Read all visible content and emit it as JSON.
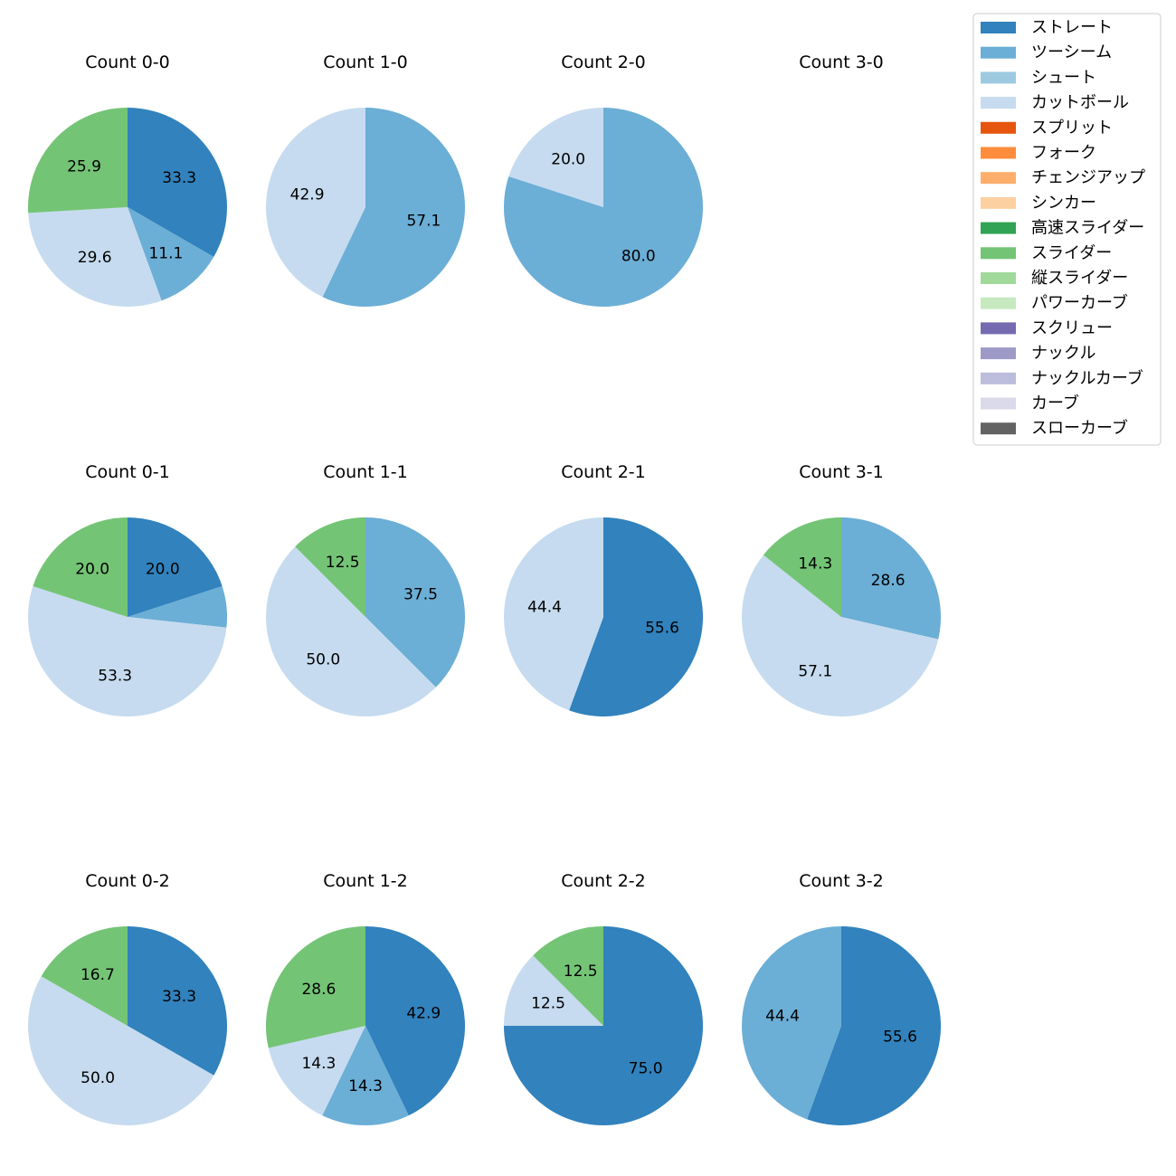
{
  "chart_data": {
    "type": "pie",
    "colors": {
      "ストレート": "#3182bd",
      "ツーシーム": "#6baed6",
      "シュート": "#9ecae1",
      "カットボール": "#c6dbef",
      "スプリット": "#e6550d",
      "フォーク": "#fd8d3c",
      "チェンジアップ": "#fdae6b",
      "シンカー": "#fdd0a2",
      "高速スライダー": "#31a354",
      "スライダー": "#74c476",
      "縦スライダー": "#a1d99b",
      "パワーカーブ": "#c7e9c0",
      "スクリュー": "#756bb1",
      "ナックル": "#9e9ac8",
      "ナックルカーブ": "#bcbddc",
      "カーブ": "#dadaeb",
      "スローカーブ": "#636363"
    },
    "legend": {
      "placement": "top-right",
      "entries": [
        "ストレート",
        "ツーシーム",
        "シュート",
        "カットボール",
        "スプリット",
        "フォーク",
        "チェンジアップ",
        "シンカー",
        "高速スライダー",
        "スライダー",
        "縦スライダー",
        "パワーカーブ",
        "スクリュー",
        "ナックル",
        "ナックルカーブ",
        "カーブ",
        "スローカーブ"
      ]
    },
    "pies": [
      {
        "title": "Count 0-0",
        "slices": [
          {
            "pitch": "ストレート",
            "value": 33.3,
            "label": "33.3"
          },
          {
            "pitch": "ツーシーム",
            "value": 11.1,
            "label": "11.1"
          },
          {
            "pitch": "カットボール",
            "value": 29.6,
            "label": "29.6"
          },
          {
            "pitch": "スライダー",
            "value": 25.9,
            "label": "25.9"
          }
        ]
      },
      {
        "title": "Count 1-0",
        "slices": [
          {
            "pitch": "ツーシーム",
            "value": 57.1,
            "label": "57.1"
          },
          {
            "pitch": "カットボール",
            "value": 42.9,
            "label": "42.9"
          }
        ]
      },
      {
        "title": "Count 2-0",
        "slices": [
          {
            "pitch": "ツーシーム",
            "value": 80.0,
            "label": "80.0"
          },
          {
            "pitch": "カットボール",
            "value": 20.0,
            "label": "20.0"
          }
        ]
      },
      {
        "title": "Count 3-0",
        "slices": []
      },
      {
        "title": "Count 0-1",
        "slices": [
          {
            "pitch": "ストレート",
            "value": 20.0,
            "label": "20.0"
          },
          {
            "pitch": "ツーシーム",
            "value": 6.7,
            "label": ""
          },
          {
            "pitch": "カットボール",
            "value": 53.3,
            "label": "53.3"
          },
          {
            "pitch": "スライダー",
            "value": 20.0,
            "label": "20.0"
          }
        ]
      },
      {
        "title": "Count 1-1",
        "slices": [
          {
            "pitch": "ツーシーム",
            "value": 37.5,
            "label": "37.5"
          },
          {
            "pitch": "カットボール",
            "value": 50.0,
            "label": "50.0"
          },
          {
            "pitch": "スライダー",
            "value": 12.5,
            "label": "12.5"
          }
        ]
      },
      {
        "title": "Count 2-1",
        "slices": [
          {
            "pitch": "ストレート",
            "value": 55.6,
            "label": "55.6"
          },
          {
            "pitch": "カットボール",
            "value": 44.4,
            "label": "44.4"
          }
        ]
      },
      {
        "title": "Count 3-1",
        "slices": [
          {
            "pitch": "ツーシーム",
            "value": 28.6,
            "label": "28.6"
          },
          {
            "pitch": "カットボール",
            "value": 57.1,
            "label": "57.1"
          },
          {
            "pitch": "スライダー",
            "value": 14.3,
            "label": "14.3"
          }
        ]
      },
      {
        "title": "Count 0-2",
        "slices": [
          {
            "pitch": "ストレート",
            "value": 33.3,
            "label": "33.3"
          },
          {
            "pitch": "カットボール",
            "value": 50.0,
            "label": "50.0"
          },
          {
            "pitch": "スライダー",
            "value": 16.7,
            "label": "16.7"
          }
        ]
      },
      {
        "title": "Count 1-2",
        "slices": [
          {
            "pitch": "ストレート",
            "value": 42.9,
            "label": "42.9"
          },
          {
            "pitch": "ツーシーム",
            "value": 14.3,
            "label": "14.3"
          },
          {
            "pitch": "カットボール",
            "value": 14.3,
            "label": "14.3"
          },
          {
            "pitch": "スライダー",
            "value": 28.6,
            "label": "28.6"
          }
        ]
      },
      {
        "title": "Count 2-2",
        "slices": [
          {
            "pitch": "ストレート",
            "value": 75.0,
            "label": "75.0"
          },
          {
            "pitch": "カットボール",
            "value": 12.5,
            "label": "12.5"
          },
          {
            "pitch": "スライダー",
            "value": 12.5,
            "label": "12.5"
          }
        ]
      },
      {
        "title": "Count 3-2",
        "slices": [
          {
            "pitch": "ストレート",
            "value": 55.6,
            "label": "55.6"
          },
          {
            "pitch": "ツーシーム",
            "value": 44.4,
            "label": "44.4"
          }
        ]
      }
    ]
  }
}
